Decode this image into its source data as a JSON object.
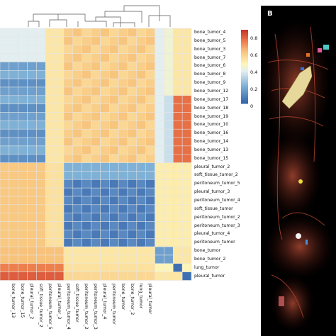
{
  "panel_label": "B",
  "legend_ticks": [
    "0.8",
    "0.6",
    "0.4",
    "0.2",
    "0"
  ],
  "row_labels": [
    "bone_tumor_4",
    "bone_tumor_5",
    "bone_tumor_3",
    "bone_tumor_7",
    "bone_tumor_6",
    "bone_tumor_8",
    "bone_tumor_9",
    "bone_tumor_12",
    "bone_tumor_17",
    "bone_tumor_18",
    "bone_tumor_19",
    "bone_tumor_10",
    "bone_tumor_16",
    "bone_tumor_14",
    "bone_tumor_13",
    "bone_tumor_15",
    "pleural_tumor_2",
    "soft_tissue_tumor_2",
    "peritoneum_tumor_5",
    "pleural_tumor_3",
    "peritoneum_tumor_4",
    "soft_tissue_tumor",
    "peritoneum_tumor_2",
    "peritoneum_tumor_3",
    "pleural_tumor_4",
    "peritoneum_tumor",
    "bone_tumor",
    "bone_tumor_2",
    "lung_tumor",
    "pleural_tumor"
  ],
  "col_labels": [
    "bone_tumor_13",
    "bone_tumor_15",
    "pleural_tumor_2",
    "soft_tissue_tumor_2",
    "peritoneum_tumor_5",
    "pleural_tumor_3",
    "peritoneum_tumor_4",
    "soft_tissue_tumor",
    "peritoneum_tumor_2",
    "peritoneum_tumor_3",
    "pleural_tumor_4",
    "peritoneum_tumor",
    "bone_tumor",
    "bone_tumor_2",
    "lung_tumor",
    "pleural_tumor"
  ],
  "colors": {
    "high": "#c8372d",
    "mid": "#fdf5b8",
    "low": "#3a6fb0",
    "grid": "#e6e6e6",
    "panel_bg": "#000000"
  }
}
